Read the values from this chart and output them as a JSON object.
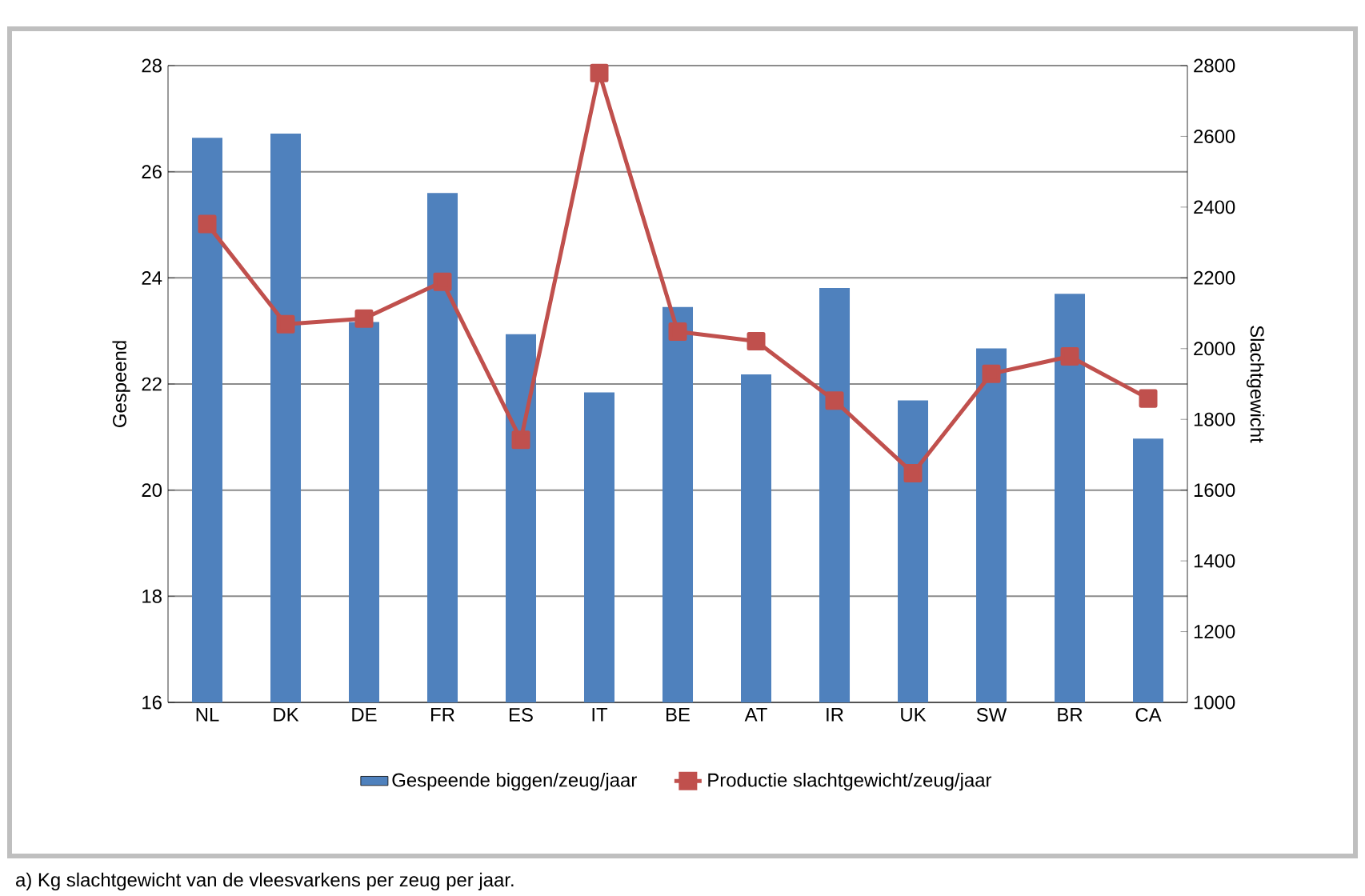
{
  "chart_data": {
    "type": "bar",
    "categories": [
      "NL",
      "DK",
      "DE",
      "FR",
      "ES",
      "IT",
      "BE",
      "AT",
      "IR",
      "UK",
      "SW",
      "BR",
      "CA"
    ],
    "series": [
      {
        "name": "Gespeende biggen/zeug/jaar",
        "color": "#4f81bd",
        "values": [
          26.64,
          26.72,
          23.17,
          25.6,
          22.94,
          21.84,
          23.45,
          22.18,
          23.81,
          21.69,
          22.67,
          23.7,
          20.97
        ]
      },
      {
        "name": "Productie slachtgewicht/zeug/jaar",
        "type": "line",
        "axis": "y2",
        "color": "#c0504d",
        "marker": "square",
        "values": [
          2352,
          2069,
          2085,
          2189,
          1742,
          2779,
          2048,
          2021,
          1853,
          1648,
          1929,
          1978,
          1859
        ]
      }
    ],
    "ylabel": "Gespeend",
    "y2label": "Slachtgewicht",
    "ylim": [
      16,
      28
    ],
    "yticks": [
      16,
      18,
      20,
      22,
      24,
      26,
      28
    ],
    "y2lim": [
      1000,
      2800
    ],
    "y2ticks": [
      1000,
      1200,
      1400,
      1600,
      1800,
      2000,
      2200,
      2400,
      2600,
      2800
    ],
    "grid": "y",
    "legend": "bottom",
    "annotations": [
      "a) Kg slachtgewicht van de vleesvarkens per zeug per jaar."
    ]
  }
}
